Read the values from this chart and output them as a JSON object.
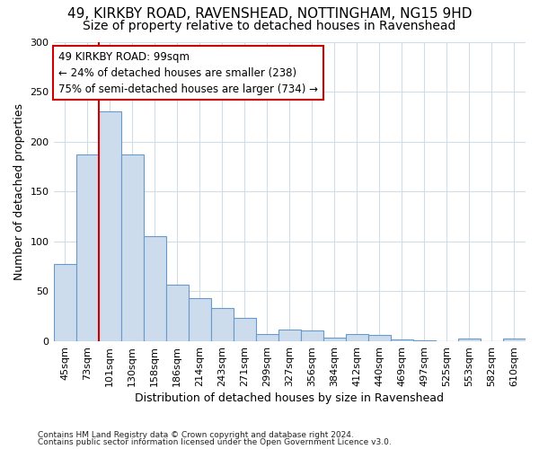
{
  "title1": "49, KIRKBY ROAD, RAVENSHEAD, NOTTINGHAM, NG15 9HD",
  "title2": "Size of property relative to detached houses in Ravenshead",
  "xlabel": "Distribution of detached houses by size in Ravenshead",
  "ylabel": "Number of detached properties",
  "footnote1": "Contains HM Land Registry data © Crown copyright and database right 2024.",
  "footnote2": "Contains public sector information licensed under the Open Government Licence v3.0.",
  "annotation_line1": "49 KIRKBY ROAD: 99sqm",
  "annotation_line2": "← 24% of detached houses are smaller (238)",
  "annotation_line3": "75% of semi-detached houses are larger (734) →",
  "bar_color": "#cddcec",
  "bar_edge_color": "#6699cc",
  "vline_color": "#cc0000",
  "vline_x": 2.0,
  "categories": [
    "45sqm",
    "73sqm",
    "101sqm",
    "130sqm",
    "158sqm",
    "186sqm",
    "214sqm",
    "243sqm",
    "271sqm",
    "299sqm",
    "327sqm",
    "356sqm",
    "384sqm",
    "412sqm",
    "440sqm",
    "469sqm",
    "497sqm",
    "525sqm",
    "553sqm",
    "582sqm",
    "610sqm"
  ],
  "values": [
    77,
    187,
    230,
    187,
    105,
    57,
    43,
    33,
    23,
    7,
    12,
    11,
    4,
    7,
    6,
    2,
    1,
    0,
    3,
    0,
    3
  ],
  "ylim": [
    0,
    300
  ],
  "yticks": [
    0,
    50,
    100,
    150,
    200,
    250,
    300
  ],
  "bg_color": "#ffffff",
  "grid_color": "#d0dce8",
  "annotation_box_edge": "#cc0000",
  "title_fontsize": 11,
  "subtitle_fontsize": 10
}
